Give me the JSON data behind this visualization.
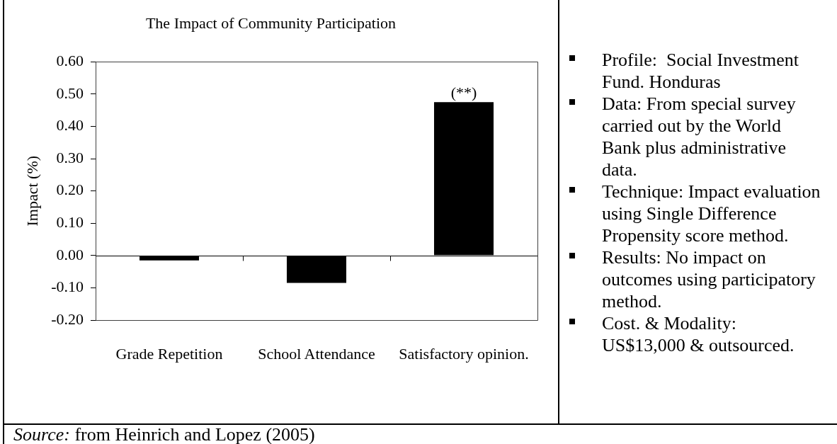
{
  "chart_data": [
    {
      "type": "bar",
      "title": "The Impact of Community Participation",
      "ylabel": "Impact (%)",
      "categories": [
        "Grade Repetition",
        "School Attendance",
        "Satisfactory opinion."
      ],
      "values": [
        -0.015,
        -0.085,
        0.475
      ],
      "color": "#000000",
      "ylim": [
        -0.2,
        0.6
      ],
      "yticks": [
        {
          "value": -0.2,
          "label": "-0.20"
        },
        {
          "value": -0.1,
          "label": "-0.10"
        },
        {
          "value": 0,
          "label": "0.00"
        },
        {
          "value": 0.1,
          "label": "0.10"
        },
        {
          "value": 0.2,
          "label": "0.20"
        },
        {
          "value": 0.3,
          "label": "0.30"
        },
        {
          "value": 0.4,
          "label": "0.40"
        },
        {
          "value": 0.5,
          "label": "0.50"
        },
        {
          "value": 0.6,
          "label": "0.60"
        }
      ],
      "annotations": [
        {
          "text": "(**)",
          "x": "Satisfactory opinion.",
          "y": 0.475
        },
        "Source: from Heinrich and Lopez (2005)"
      ]
    },
    {
      "type": "other",
      "annotations": [
        "Profile:  Social Investment Fund. Honduras",
        "Data: From special survey carried out by the World Bank plus administrative data.",
        "Technique: Impact evaluation using Single Difference Propensity score method.",
        "Results: No impact on outcomes using participatory method.",
        "Cost. & Modality: US$13,000 & outsourced."
      ]
    }
  ]
}
